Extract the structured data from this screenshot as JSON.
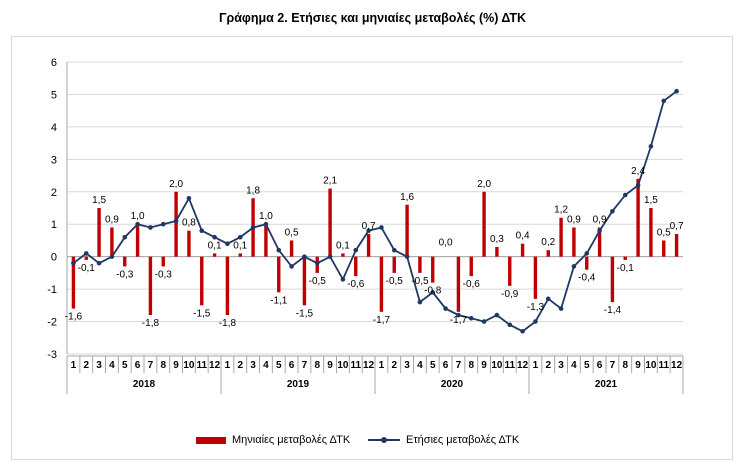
{
  "chart_data": {
    "type": "bar+line",
    "title": "Γράφημα 2. Ετήσιες και μηνιαίες μεταβολές (%) ΔΤΚ",
    "ylim": [
      -3,
      6
    ],
    "yticks": [
      "6",
      "5",
      "4",
      "3",
      "2",
      "1",
      "0",
      "-1",
      "-2",
      "-3"
    ],
    "ytick_values": [
      6,
      5,
      4,
      3,
      2,
      1,
      0,
      -1,
      -2,
      -3
    ],
    "months": [
      "1",
      "2",
      "3",
      "4",
      "5",
      "6",
      "7",
      "8",
      "9",
      "10",
      "11",
      "12"
    ],
    "years": [
      "2018",
      "2019",
      "2020",
      "2021"
    ],
    "series": [
      {
        "name": "Μηνιαίες μεταβολές ΔΤΚ",
        "kind": "bar",
        "color": "#c00000",
        "values": [
          -1.6,
          -0.1,
          1.5,
          0.9,
          -0.3,
          1.0,
          -1.8,
          -0.3,
          2.0,
          0.8,
          -1.5,
          0.1,
          -1.8,
          0.1,
          1.8,
          1.0,
          -1.1,
          0.5,
          -1.5,
          -0.5,
          2.1,
          0.1,
          -0.6,
          0.7,
          -1.7,
          -0.5,
          1.6,
          -0.5,
          -0.8,
          0.0,
          -1.7,
          -0.6,
          2.0,
          0.3,
          -0.9,
          0.4,
          -1.3,
          0.2,
          1.2,
          0.9,
          -0.4,
          0.9,
          -1.4,
          -0.1,
          2.4,
          1.5,
          0.5,
          0.7
        ],
        "labels": [
          "-1,6",
          "-0,1",
          "1,5",
          "0,9",
          "-0,3",
          "1,0",
          "-1,8",
          "-0,3",
          "2,0",
          "0,8",
          "-1,5",
          "0,1",
          "-1,8",
          "0,1",
          "1,8",
          "1,0",
          "-1,1",
          "0,5",
          "-1,5",
          "-0,5",
          "2,1",
          "0,1",
          "-0,6",
          "0,7",
          "-1,7",
          "-0,5",
          "1,6",
          "-0,5",
          "-0,8",
          "0,0",
          "-1,7",
          "-0,6",
          "2,0",
          "0,3",
          "-0,9",
          "0,4",
          "-1,3",
          "0,2",
          "1,2",
          "0,9",
          "-0,4",
          "0,9",
          "-1,4",
          "-0,1",
          "2,4",
          "1,5",
          "0,5",
          "0,7"
        ]
      },
      {
        "name": "Ετήσιες μεταβολές ΔΤΚ",
        "kind": "line",
        "color": "#1f3864",
        "values": [
          -0.2,
          0.1,
          -0.2,
          0.0,
          0.6,
          1.0,
          0.9,
          1.0,
          1.1,
          1.8,
          0.8,
          0.6,
          0.4,
          0.6,
          0.9,
          1.0,
          0.2,
          -0.3,
          0.0,
          -0.2,
          0.0,
          -0.7,
          0.2,
          0.8,
          0.9,
          0.2,
          0.0,
          -1.4,
          -1.1,
          -1.6,
          -1.8,
          -1.9,
          -2.0,
          -1.8,
          -2.1,
          -2.3,
          -2.0,
          -1.3,
          -1.6,
          -0.3,
          0.1,
          0.8,
          1.4,
          1.9,
          2.2,
          3.4,
          4.8,
          5.1
        ]
      }
    ]
  }
}
